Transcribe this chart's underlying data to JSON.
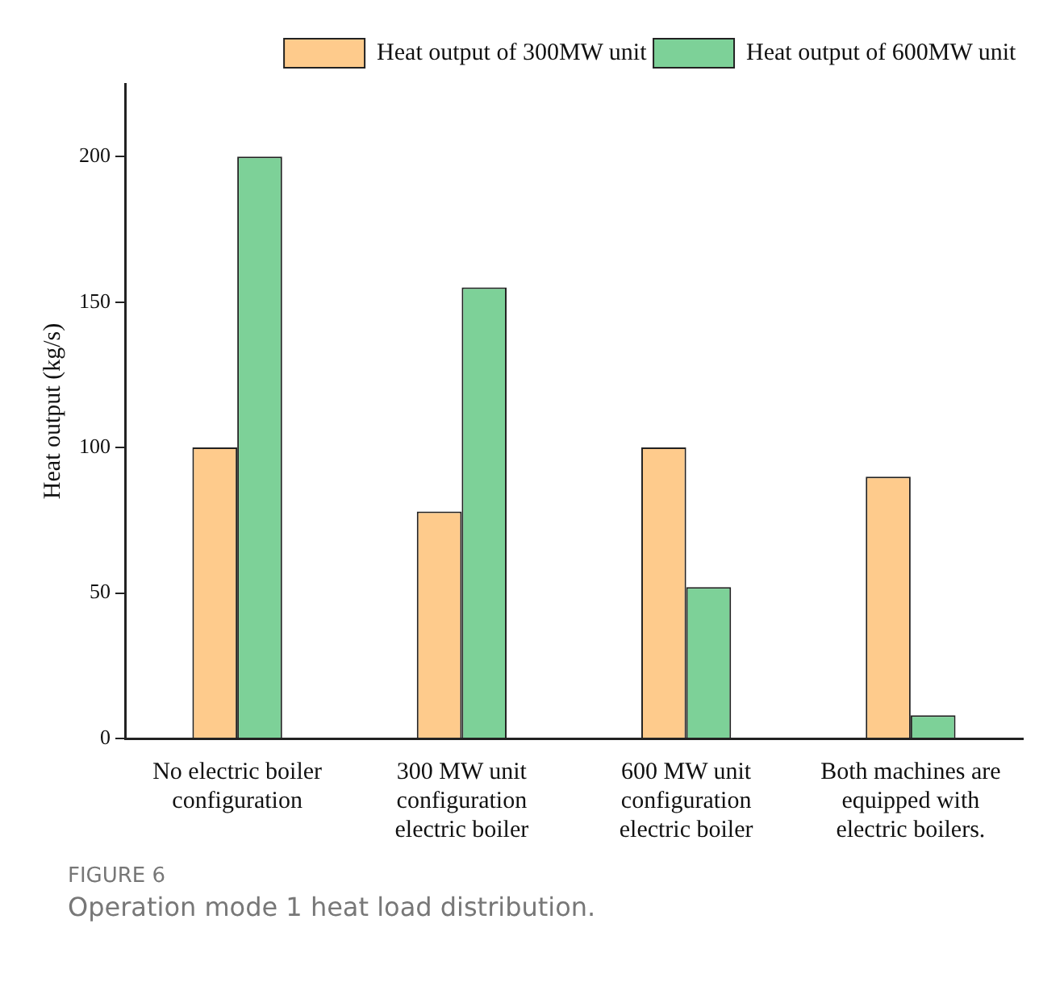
{
  "chart_data": {
    "type": "bar",
    "categories": [
      "No electric boiler configuration",
      "300 MW unit configuration electric boiler",
      "600 MW unit configuration electric boiler",
      "Both machines are equipped with electric boilers."
    ],
    "series": [
      {
        "name": "Heat output of 300MW unit",
        "color": "#fecb8c",
        "values": [
          100,
          78,
          100,
          90
        ]
      },
      {
        "name": "Heat output of 600MW unit",
        "color": "#7dd198",
        "values": [
          200,
          155,
          52,
          8
        ]
      }
    ],
    "ylabel": "Heat output (kg/s)",
    "ylim": [
      0,
      225
    ],
    "yticks": [
      0,
      50,
      100,
      150,
      200
    ],
    "grid": false,
    "legend": "top right",
    "annotations": [
      "FIGURE 6",
      "Operation mode 1 heat load distribution."
    ]
  }
}
